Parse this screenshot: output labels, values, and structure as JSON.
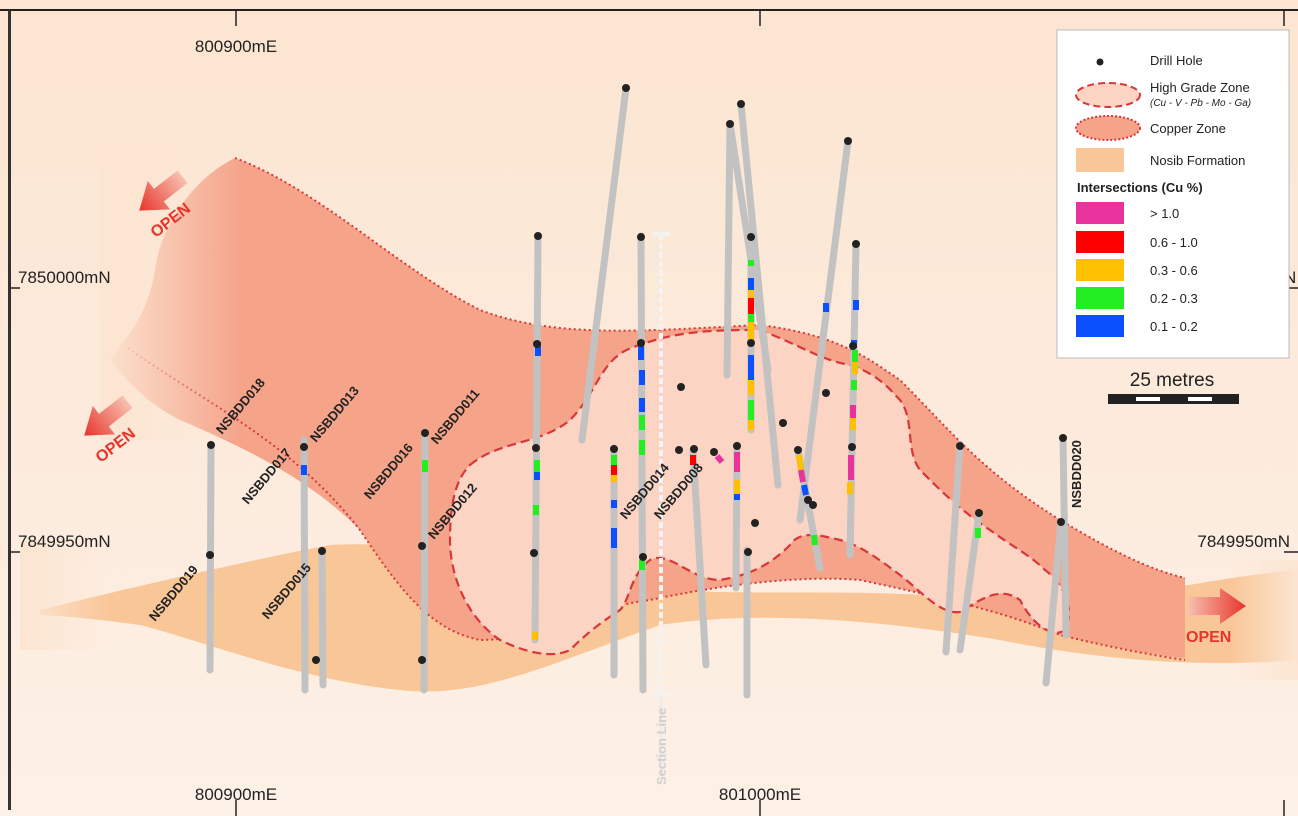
{
  "coords": {
    "top_left_e": "800900mE",
    "top_right_e": "",
    "bottom_left_e": "800900mE",
    "bottom_right_e": "801000mE",
    "left_upper_n": "7850000mN",
    "left_lower_n": "7849950mN",
    "right_lower_n": "7849950mN"
  },
  "open_labels": [
    "OPEN",
    "OPEN",
    "OPEN"
  ],
  "drill_holes": [
    {
      "id": "NSBDD018",
      "label": "NSBDD018"
    },
    {
      "id": "NSBDD019",
      "label": "NSBDD019"
    },
    {
      "id": "NSBDD017",
      "label": "NSBDD017"
    },
    {
      "id": "NSBDD013",
      "label": "NSBDD013"
    },
    {
      "id": "NSBDD015",
      "label": "NSBDD015"
    },
    {
      "id": "NSBDD016",
      "label": "NSBDD016"
    },
    {
      "id": "NSBDD011",
      "label": "NSBDD011"
    },
    {
      "id": "NSBDD012",
      "label": "NSBDD012"
    },
    {
      "id": "NSBDD014",
      "label": "NSBDD014"
    },
    {
      "id": "NSBDD008",
      "label": "NSBDD008"
    },
    {
      "id": "NSBDD020",
      "label": "NSBDD020"
    }
  ],
  "section_line_label": "Section Line",
  "legend": {
    "drill_hole": "Drill Hole",
    "high_grade_zone": "High Grade Zone",
    "high_grade_elements": "(Cu - V - Pb - Mo - Ga)",
    "copper_zone": "Copper Zone",
    "nosib_formation": "Nosib Formation",
    "intersections_title": "Intersections (Cu %)",
    "intersections": [
      {
        "label": "> 1.0",
        "color": "#e8339c"
      },
      {
        "label": "0.6 - 1.0",
        "color": "#ff0000"
      },
      {
        "label": "0.3 - 0.6",
        "color": "#ffc000"
      },
      {
        "label": "0.2 - 0.3",
        "color": "#22ee22"
      },
      {
        "label": "0.1 - 0.2",
        "color": "#0a50ff"
      }
    ]
  },
  "scale_bar": {
    "label": "25 metres"
  },
  "colors": {
    "background": "#fce5d1",
    "copper_zone": "#f5a48a",
    "high_grade_zone": "#fcd4c3",
    "nosib_formation": "#f9c698",
    "zone_outline": "#d9363a",
    "open_arrow": "#e8342b"
  }
}
